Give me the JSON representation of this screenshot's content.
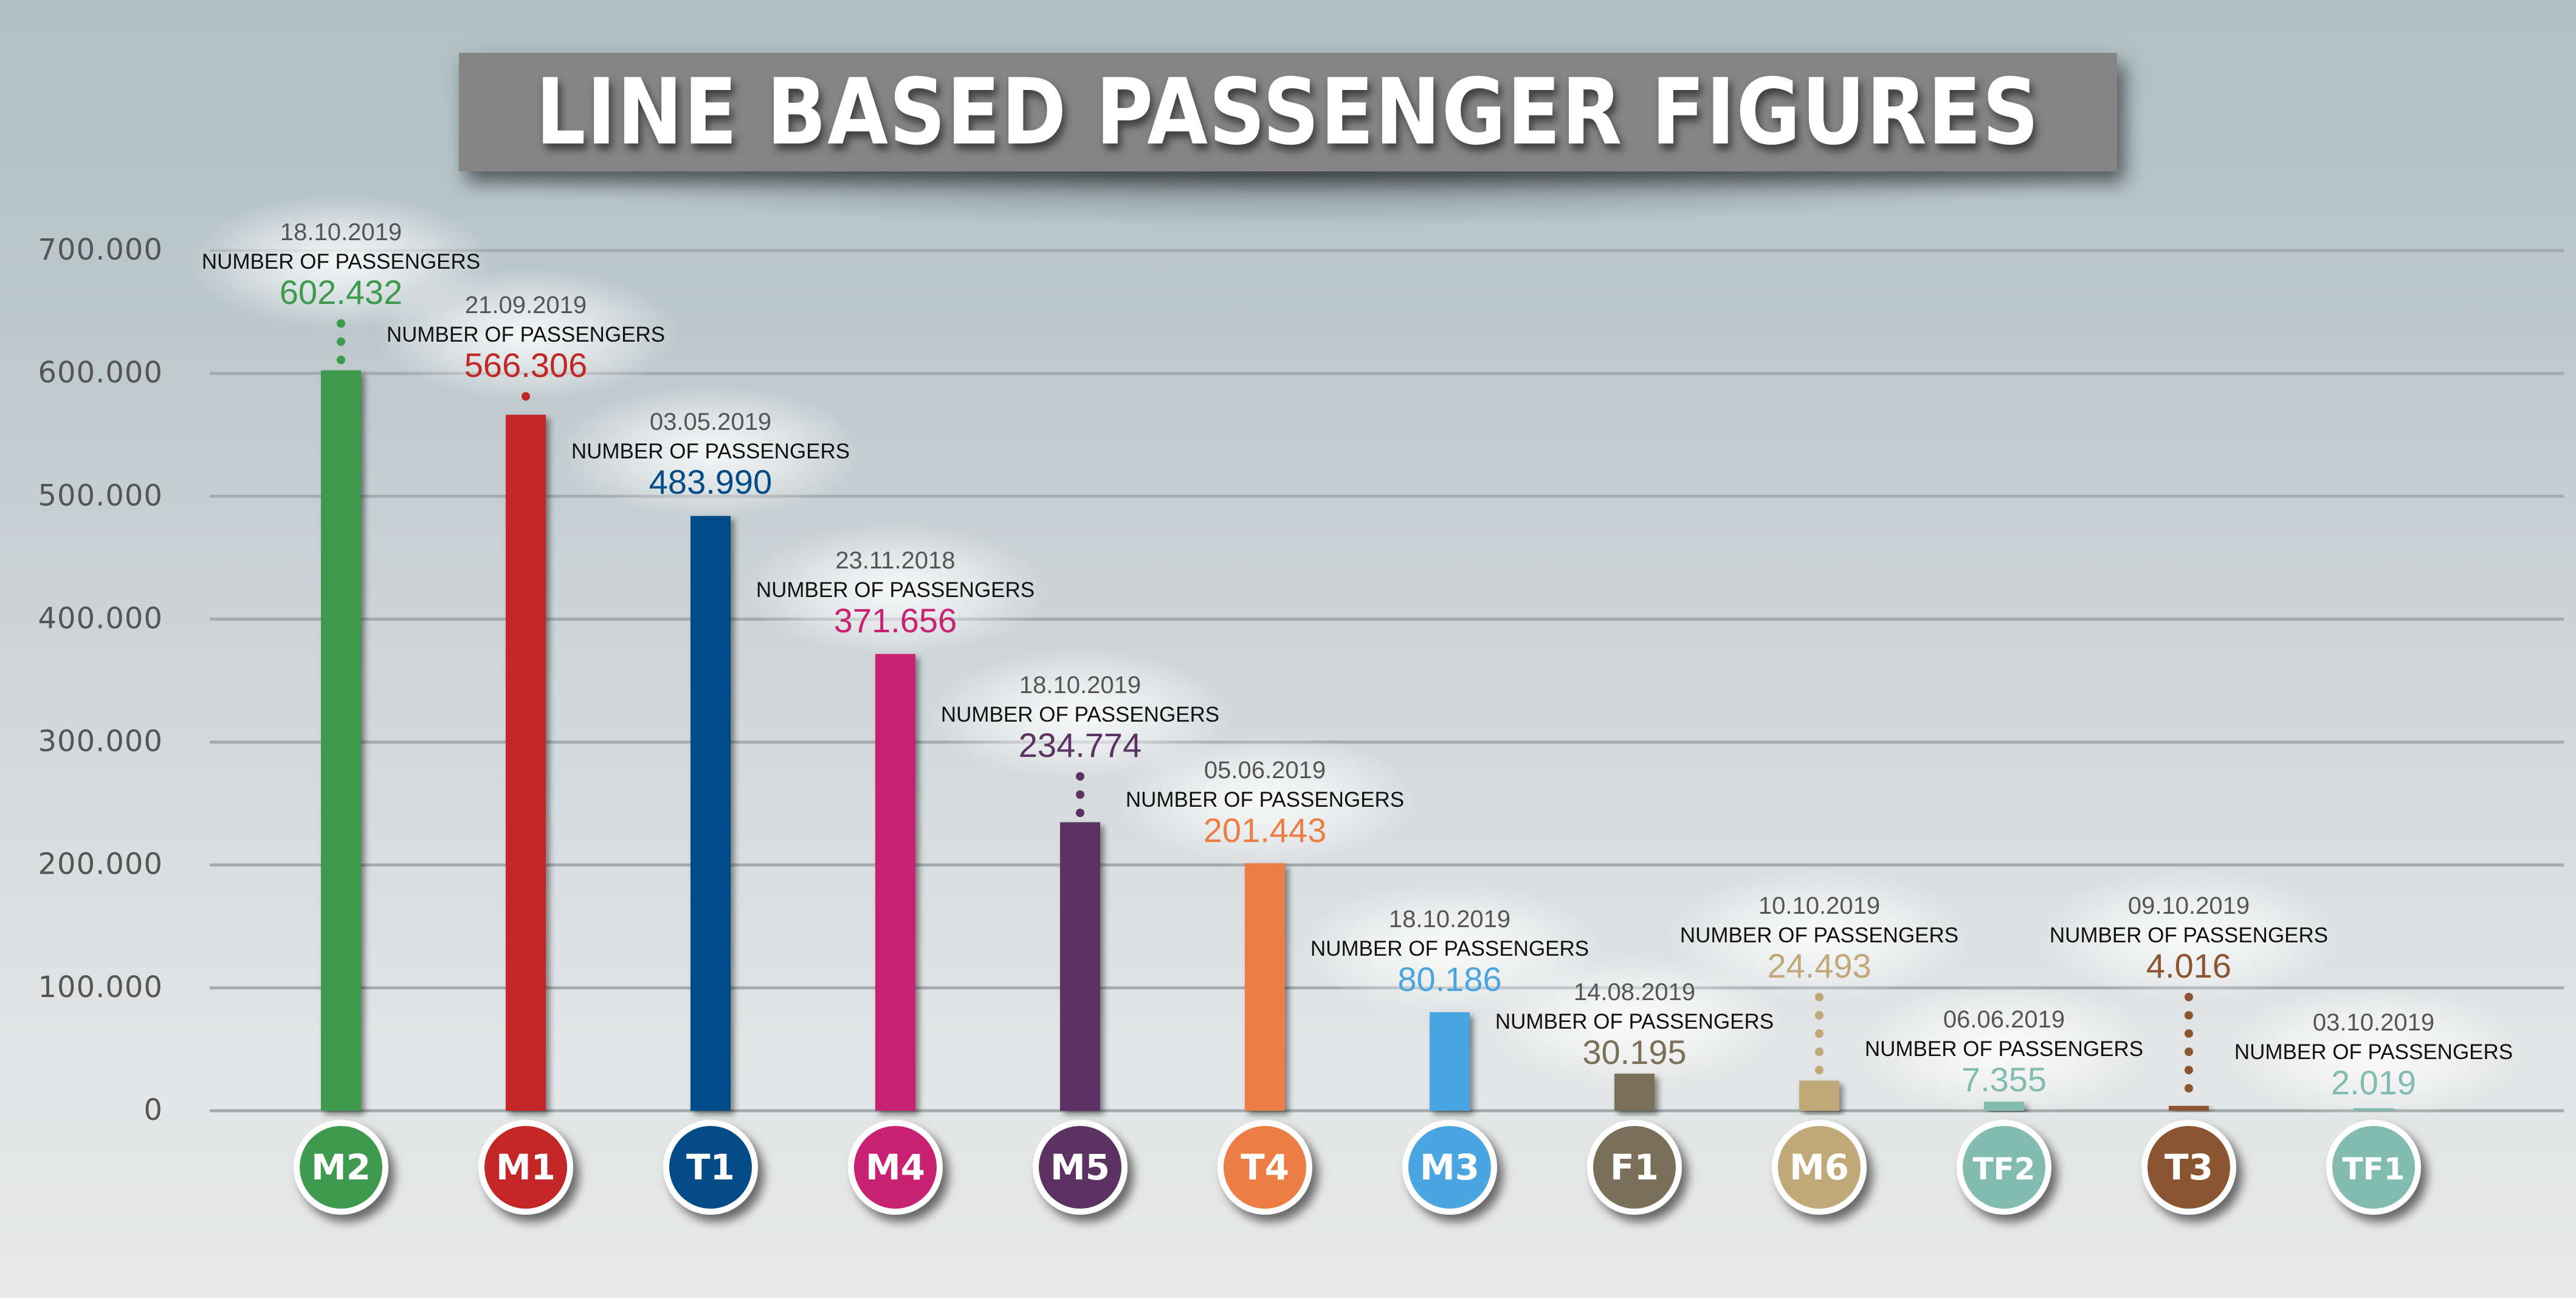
{
  "chart_data": {
    "type": "bar",
    "title": "LINE BASED PASSENGER FIGURES",
    "xlabel": "",
    "ylabel": "",
    "ylim": [
      0,
      700000
    ],
    "yticks": [
      0,
      100000,
      200000,
      300000,
      400000,
      500000,
      600000,
      700000
    ],
    "ytick_labels": [
      "0",
      "100.000",
      "200.000",
      "300.000",
      "400.000",
      "500.000",
      "600.000",
      "700.000"
    ],
    "grid": true,
    "label_caption": "NUMBER OF PASSENGERS",
    "categories": [
      "M2",
      "M1",
      "T1",
      "M4",
      "M5",
      "T4",
      "M3",
      "F1",
      "M6",
      "TF2",
      "T3",
      "TF1"
    ],
    "values": [
      602432,
      566306,
      483990,
      371656,
      234774,
      201443,
      80186,
      30195,
      24493,
      7355,
      4016,
      2019
    ],
    "value_labels": [
      "602.432",
      "566.306",
      "483.990",
      "371.656",
      "234.774",
      "201.443",
      "80.186",
      "30.195",
      "24.493",
      "7.355",
      "4.016",
      "2.019"
    ],
    "dates": [
      "18.10.2019",
      "21.09.2019",
      "03.05.2019",
      "23.11.2018",
      "18.10.2019",
      "05.06.2019",
      "18.10.2019",
      "14.08.2019",
      "10.10.2019",
      "06.06.2019",
      "09.10.2019",
      "03.10.2019"
    ],
    "colors": [
      "#3d9a4e",
      "#c22625",
      "#034c87",
      "#c92173",
      "#5b3262",
      "#ec7e45",
      "#4aa5e0",
      "#7a7059",
      "#c1a878",
      "#82bbb0",
      "#8b5532",
      "#82bbb0"
    ]
  }
}
